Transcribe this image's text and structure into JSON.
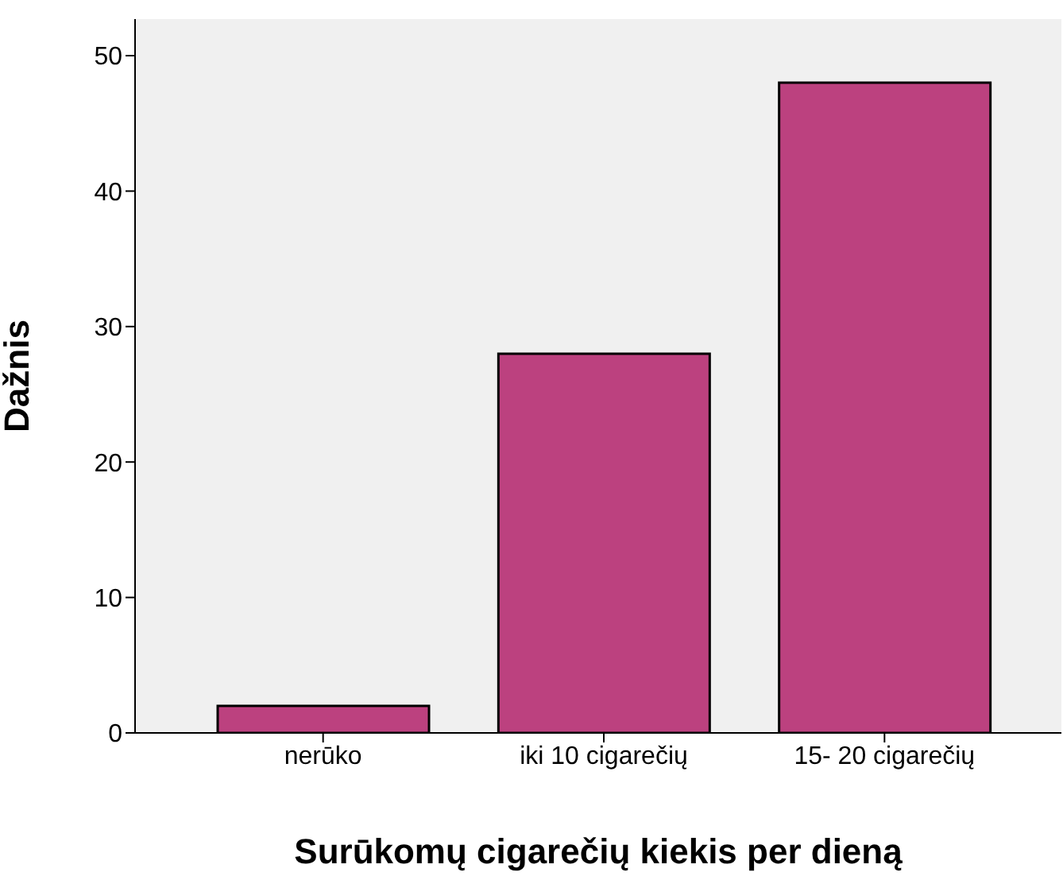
{
  "chart_data": {
    "type": "bar",
    "xlabel": "Surūkomų cigarečių kiekis per dieną",
    "ylabel": "Dažnis",
    "categories": [
      "nerūko",
      "iki 10 cigarečių",
      "15- 20 cigarečių"
    ],
    "values": [
      2,
      28,
      48
    ],
    "color": "#bc417f",
    "ylim": [
      0,
      52.7
    ],
    "yticks": [
      0,
      10,
      20,
      30,
      40,
      50
    ]
  }
}
